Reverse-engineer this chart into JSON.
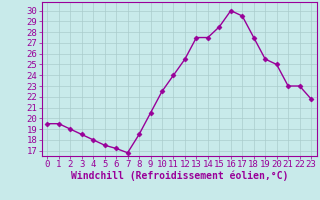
{
  "x": [
    0,
    1,
    2,
    3,
    4,
    5,
    6,
    7,
    8,
    9,
    10,
    11,
    12,
    13,
    14,
    15,
    16,
    17,
    18,
    19,
    20,
    21,
    22,
    23
  ],
  "y": [
    19.5,
    19.5,
    19.0,
    18.5,
    18.0,
    17.5,
    17.2,
    16.8,
    18.5,
    20.5,
    22.5,
    24.0,
    25.5,
    27.5,
    27.5,
    28.5,
    30.0,
    29.5,
    27.5,
    25.5,
    25.0,
    23.0,
    23.0,
    21.8
  ],
  "line_color": "#990099",
  "marker": "D",
  "markersize": 2.5,
  "linewidth": 1.0,
  "background_color": "#c8eaea",
  "grid_color": "#aacccc",
  "xlabel": "Windchill (Refroidissement éolien,°C)",
  "xlabel_fontsize": 7,
  "xtick_labels": [
    "0",
    "1",
    "2",
    "3",
    "4",
    "5",
    "6",
    "7",
    "8",
    "9",
    "10",
    "11",
    "12",
    "13",
    "14",
    "15",
    "16",
    "17",
    "18",
    "19",
    "20",
    "21",
    "22",
    "23"
  ],
  "ytick_min": 17,
  "ytick_max": 30,
  "ytick_step": 1,
  "ylim": [
    16.5,
    30.8
  ],
  "xlim": [
    -0.5,
    23.5
  ],
  "tick_fontsize": 6.5
}
